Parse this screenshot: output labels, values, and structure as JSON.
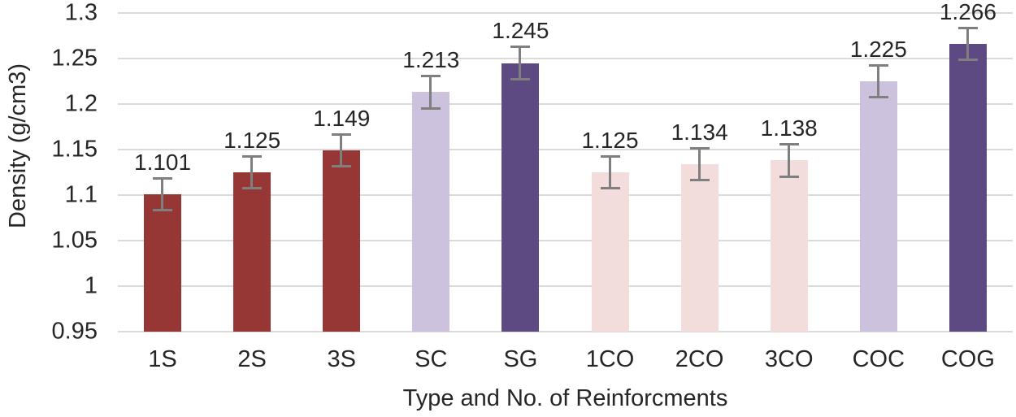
{
  "chart_data": {
    "type": "bar",
    "xlabel": "Type and No. of Reinforcments",
    "ylabel": "Density (g/cm3)",
    "categories": [
      "1S",
      "2S",
      "3S",
      "SC",
      "SG",
      "1CO",
      "2CO",
      "3CO",
      "COC",
      "COG"
    ],
    "values": [
      1.101,
      1.125,
      1.149,
      1.213,
      1.245,
      1.125,
      1.134,
      1.138,
      1.225,
      1.266
    ],
    "value_labels": [
      "1.101",
      "1.125",
      "1.149",
      "1.213",
      "1.245",
      "1.125",
      "1.134",
      "1.138",
      "1.225",
      "1.266"
    ],
    "error": 0.019,
    "bar_colors": [
      "#963736",
      "#963736",
      "#963736",
      "#ccc2dd",
      "#5d4a82",
      "#f2dcdc",
      "#f2dcdc",
      "#f2dcdc",
      "#ccc2dd",
      "#5d4a82"
    ],
    "ylim": [
      0.95,
      1.3
    ],
    "yticks": [
      "0.95",
      "1",
      "1.05",
      "1.1",
      "1.15",
      "1.2",
      "1.25",
      "1.3"
    ],
    "grid": true,
    "legend": "none",
    "colors": {
      "error_bar": "#7f7f7f",
      "gridline": "#dadada",
      "text": "#262626",
      "background": "#ffffff"
    }
  }
}
